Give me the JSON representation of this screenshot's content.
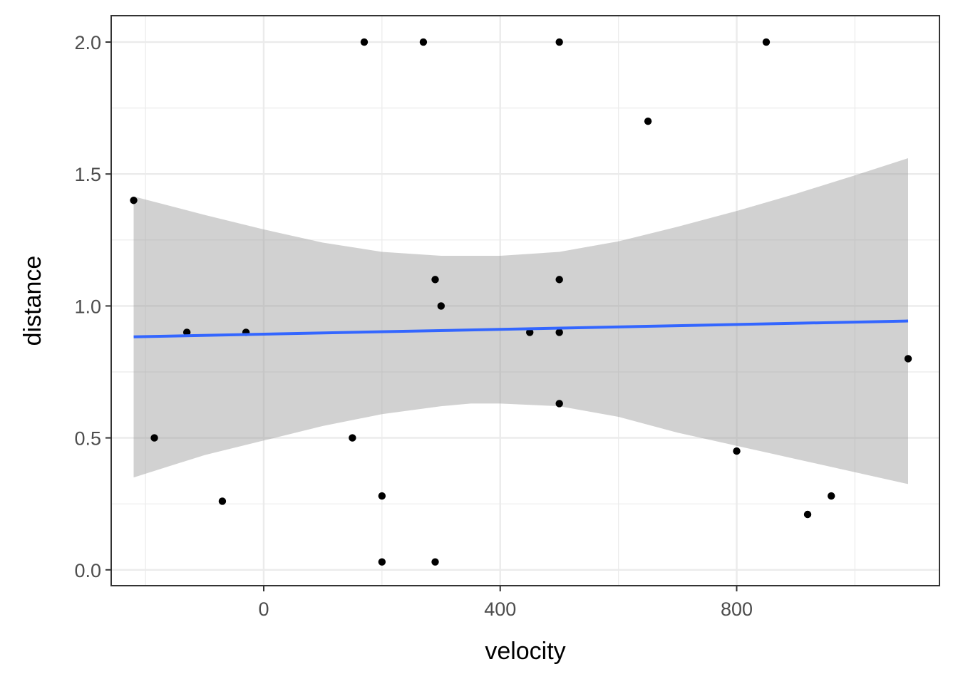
{
  "chart_data": {
    "type": "scatter",
    "xlabel": "velocity",
    "ylabel": "distance",
    "title": "",
    "xlim": [
      -258,
      1143
    ],
    "ylim": [
      -0.06,
      2.1
    ],
    "x_ticks": [
      0,
      400,
      800
    ],
    "x_tick_labels": [
      "0",
      "400",
      "800"
    ],
    "x_minor_ticks": [
      -200,
      200,
      600,
      1000
    ],
    "y_ticks": [
      0.0,
      0.5,
      1.0,
      1.5,
      2.0
    ],
    "y_tick_labels": [
      "0.0",
      "0.5",
      "1.0",
      "1.5",
      "2.0"
    ],
    "y_minor_ticks": [
      0.25,
      0.75,
      1.25,
      1.75
    ],
    "grid": true,
    "points": [
      {
        "x": -220,
        "y": 1.4
      },
      {
        "x": -185,
        "y": 0.5
      },
      {
        "x": -130,
        "y": 0.9
      },
      {
        "x": -70,
        "y": 0.26
      },
      {
        "x": -30,
        "y": 0.9
      },
      {
        "x": 150,
        "y": 0.5
      },
      {
        "x": 170,
        "y": 2.0
      },
      {
        "x": 200,
        "y": 0.28
      },
      {
        "x": 200,
        "y": 0.03
      },
      {
        "x": 270,
        "y": 2.0
      },
      {
        "x": 290,
        "y": 1.1
      },
      {
        "x": 290,
        "y": 0.03
      },
      {
        "x": 300,
        "y": 1.0
      },
      {
        "x": 450,
        "y": 0.9
      },
      {
        "x": 500,
        "y": 2.0
      },
      {
        "x": 500,
        "y": 1.1
      },
      {
        "x": 500,
        "y": 0.9
      },
      {
        "x": 500,
        "y": 0.63
      },
      {
        "x": 650,
        "y": 1.7
      },
      {
        "x": 800,
        "y": 0.45
      },
      {
        "x": 850,
        "y": 2.0
      },
      {
        "x": 920,
        "y": 0.21
      },
      {
        "x": 960,
        "y": 0.28
      },
      {
        "x": 1090,
        "y": 0.8
      }
    ],
    "trend_line": {
      "method": "linear",
      "color": "#3366ff",
      "x": [
        -220,
        1090
      ],
      "y": [
        0.883,
        0.943
      ]
    },
    "confidence_band": {
      "color": "#999999",
      "opacity": 0.45,
      "x": [
        -220,
        -100,
        0,
        100,
        200,
        300,
        350,
        400,
        500,
        600,
        700,
        800,
        900,
        1000,
        1090
      ],
      "lower": [
        0.35,
        0.435,
        0.49,
        0.545,
        0.59,
        0.62,
        0.63,
        0.63,
        0.62,
        0.58,
        0.52,
        0.47,
        0.42,
        0.37,
        0.325
      ],
      "upper": [
        1.415,
        1.345,
        1.29,
        1.24,
        1.205,
        1.19,
        1.19,
        1.19,
        1.205,
        1.245,
        1.3,
        1.36,
        1.425,
        1.495,
        1.56
      ]
    },
    "point_color": "#000000"
  }
}
